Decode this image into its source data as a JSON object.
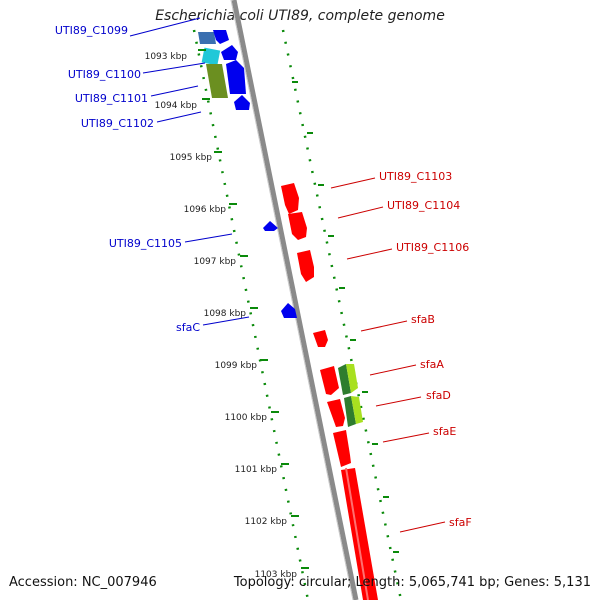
{
  "title": "Escherichia coli UTI89, complete genome",
  "footer": {
    "accession": "Accession: NC_007946",
    "summary": "Topology: circular; Length: 5,065,741 bp; Genes: 5,131"
  },
  "colors": {
    "forward_gene": "#ff0000",
    "reverse_gene": "#0000ff",
    "forward_label": "#cc0000",
    "reverse_label": "#0000cc",
    "backbone": "#8a8a8a",
    "tick": "#0a8a0a"
  },
  "ticks": [
    "1093 kbp",
    "1094 kbp",
    "1095 kbp",
    "1096 kbp",
    "1097 kbp",
    "1098 kbp",
    "1099 kbp",
    "1100 kbp",
    "1101 kbp",
    "1102 kbp",
    "1103 kbp"
  ],
  "labels": {
    "reverse": [
      "UTI89_C1099",
      "UTI89_C1100",
      "UTI89_C1101",
      "UTI89_C1102",
      "UTI89_C1105",
      "sfaC"
    ],
    "forward": [
      "UTI89_C1103",
      "UTI89_C1104",
      "UTI89_C1106",
      "sfaB",
      "sfaA",
      "sfaD",
      "sfaE",
      "sfaF"
    ]
  }
}
